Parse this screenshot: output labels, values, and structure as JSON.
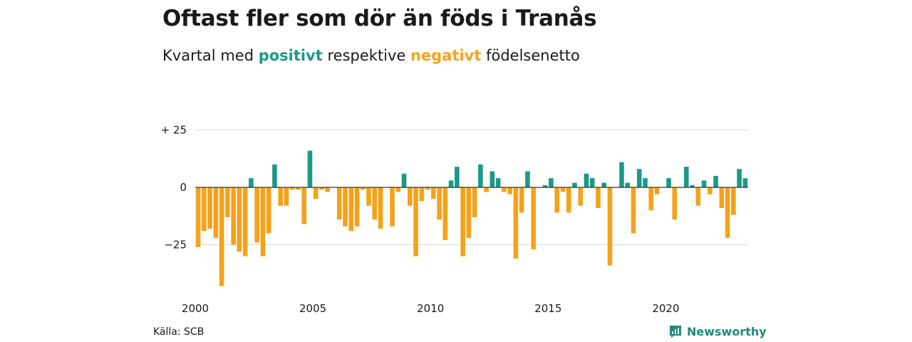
{
  "header": {
    "title": "Oftast fler som dör än föds i Tranås",
    "subtitle_prefix": "Kvartal med ",
    "subtitle_positive": "positivt",
    "subtitle_mid": " respektive ",
    "subtitle_negative": "negativt",
    "subtitle_suffix": " födelsenetto"
  },
  "footer": {
    "source": "Källa: SCB",
    "brand": "Newsworthy"
  },
  "colors": {
    "positive": "#1a9a86",
    "negative": "#f5a21b",
    "brand": "#1f8a78",
    "grid": "#d9d9d9",
    "zero_line": "#333333"
  },
  "chart_data": {
    "type": "bar",
    "x_start": "2000 Q1",
    "x_tick_labels": [
      "2000",
      "2005",
      "2010",
      "2015",
      "2020"
    ],
    "y_tick_labels": [
      "+ 25",
      "0",
      "−25"
    ],
    "y_ticks": [
      25,
      0,
      -25
    ],
    "ylim": [
      -43,
      25
    ],
    "grid": true,
    "values": [
      -26,
      -19,
      -18,
      -22,
      -43,
      -13,
      -25,
      -28,
      -30,
      4,
      -24,
      -30,
      -20,
      10,
      -8,
      -8,
      -1,
      -1,
      -16,
      16,
      -5,
      -1,
      -2,
      0,
      -14,
      -17,
      -19,
      -17,
      -1,
      -8,
      -14,
      -18,
      0,
      -17,
      -2,
      6,
      -8,
      -30,
      -6,
      -1,
      -5,
      -14,
      -23,
      3,
      9,
      -30,
      -22,
      -13,
      10,
      -2,
      7,
      4,
      -2,
      -3,
      -31,
      -11,
      7,
      -27,
      0,
      1,
      4,
      -11,
      -2,
      -11,
      2,
      -8,
      6,
      4,
      -9,
      2,
      -34,
      0,
      11,
      2,
      -20,
      8,
      4,
      -10,
      -3,
      0,
      4,
      -14,
      0,
      9,
      1,
      -8,
      3,
      -3,
      5,
      -9,
      -22,
      -12,
      8,
      4
    ]
  }
}
